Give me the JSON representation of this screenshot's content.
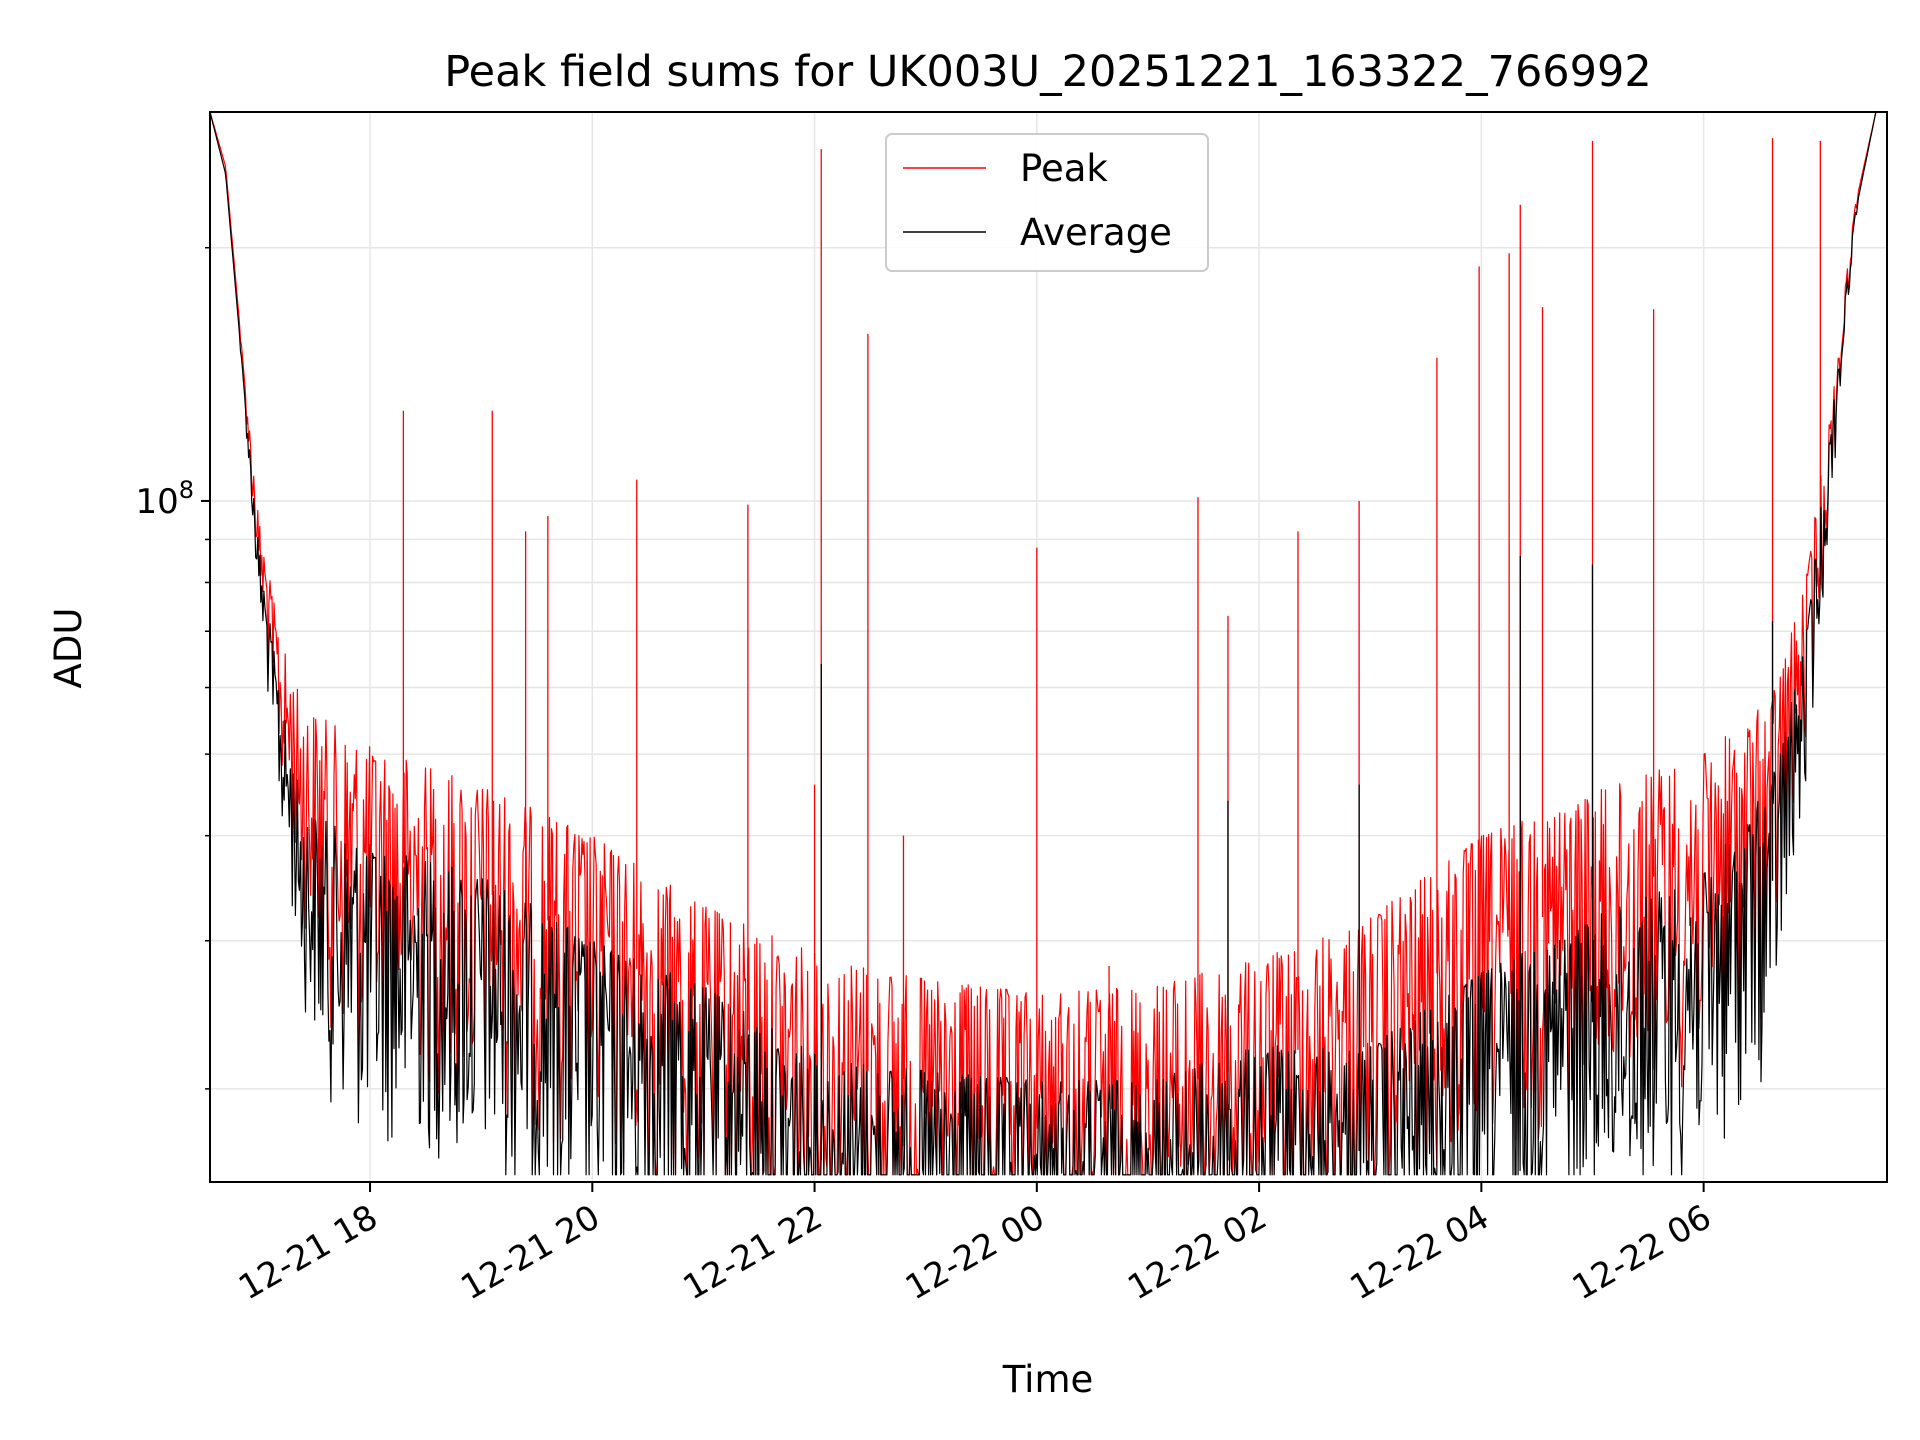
{
  "chart_data": {
    "type": "line",
    "title": "Peak field sums for UK003U_20251221_163322_766992",
    "xlabel": "Time",
    "ylabel": "ADU",
    "yscale": "log",
    "ylim": [
      15500000,
      290000000
    ],
    "xlim_hours": [
      -7.44,
      7.65
    ],
    "grid": true,
    "legend_location": "upper center",
    "x_ticks": [
      {
        "label": "12-21 18",
        "hour": -6
      },
      {
        "label": "12-21 20",
        "hour": -4
      },
      {
        "label": "12-21 22",
        "hour": -2
      },
      {
        "label": "12-22 00",
        "hour": 0
      },
      {
        "label": "12-22 02",
        "hour": 2
      },
      {
        "label": "12-22 04",
        "hour": 4
      },
      {
        "label": "12-22 06",
        "hour": 6
      }
    ],
    "y_ticks": [
      {
        "mantissa": "10",
        "exponent": "8",
        "value": 100000000
      }
    ],
    "series": [
      {
        "name": "Peak",
        "color": "#ff0000",
        "envelope": [
          [
            -7.44,
            290000000
          ],
          [
            -7.3,
            250000000
          ],
          [
            -7.15,
            150000000
          ],
          [
            -7.0,
            95000000
          ],
          [
            -6.8,
            68000000
          ],
          [
            -6.6,
            57000000
          ],
          [
            -6.0,
            51000000
          ],
          [
            -5.0,
            46000000
          ],
          [
            -4.0,
            40000000
          ],
          [
            -3.0,
            33000000
          ],
          [
            -2.0,
            29000000
          ],
          [
            -1.0,
            27000000
          ],
          [
            0.0,
            26000000
          ],
          [
            1.0,
            26500000
          ],
          [
            2.0,
            28500000
          ],
          [
            3.0,
            32000000
          ],
          [
            4.0,
            40000000
          ],
          [
            5.0,
            45000000
          ],
          [
            6.0,
            50000000
          ],
          [
            6.6,
            58000000
          ],
          [
            6.9,
            78000000
          ],
          [
            7.15,
            130000000
          ],
          [
            7.35,
            220000000
          ],
          [
            7.55,
            290000000
          ]
        ],
        "spikes": [
          [
            -5.7,
            128000000
          ],
          [
            -4.9,
            128000000
          ],
          [
            -4.6,
            92000000
          ],
          [
            -4.4,
            96000000
          ],
          [
            -3.6,
            106000000
          ],
          [
            -2.6,
            99000000
          ],
          [
            -2.0,
            46000000
          ],
          [
            -1.94,
            262000000
          ],
          [
            -1.52,
            158000000
          ],
          [
            -1.2,
            40000000
          ],
          [
            0.0,
            88000000
          ],
          [
            0.65,
            28000000
          ],
          [
            1.45,
            101000000
          ],
          [
            1.72,
            73000000
          ],
          [
            2.35,
            92000000
          ],
          [
            2.9,
            100000000
          ],
          [
            3.6,
            148000000
          ],
          [
            3.98,
            190000000
          ],
          [
            4.25,
            197000000
          ],
          [
            4.35,
            225000000
          ],
          [
            4.55,
            170000000
          ],
          [
            5.0,
            268000000
          ],
          [
            5.55,
            169000000
          ],
          [
            6.62,
            270000000
          ],
          [
            7.05,
            268000000
          ]
        ]
      },
      {
        "name": "Average",
        "color": "#000000",
        "envelope": [
          [
            -7.44,
            290000000
          ],
          [
            -7.3,
            245000000
          ],
          [
            -7.15,
            145000000
          ],
          [
            -7.0,
            88000000
          ],
          [
            -6.8,
            58000000
          ],
          [
            -6.6,
            43000000
          ],
          [
            -6.0,
            39000000
          ],
          [
            -5.0,
            36000000
          ],
          [
            -4.0,
            30000000
          ],
          [
            -3.0,
            26500000
          ],
          [
            -2.0,
            22000000
          ],
          [
            -1.0,
            21000000
          ],
          [
            0.0,
            20500000
          ],
          [
            1.0,
            20500000
          ],
          [
            2.0,
            22500000
          ],
          [
            3.0,
            22500000
          ],
          [
            4.0,
            27500000
          ],
          [
            5.0,
            32000000
          ],
          [
            6.0,
            36000000
          ],
          [
            6.6,
            46000000
          ],
          [
            6.9,
            66000000
          ],
          [
            7.15,
            125000000
          ],
          [
            7.35,
            215000000
          ],
          [
            7.55,
            290000000
          ]
        ],
        "spikes": [
          [
            -1.94,
            64000000
          ],
          [
            1.72,
            44000000
          ],
          [
            2.9,
            46000000
          ],
          [
            4.35,
            86000000
          ],
          [
            5.0,
            84000000
          ],
          [
            6.62,
            72000000
          ]
        ]
      }
    ]
  }
}
